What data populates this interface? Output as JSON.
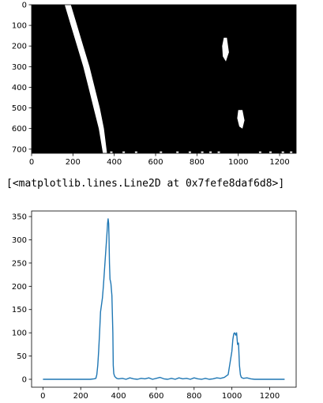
{
  "cell_output": {
    "repr": "[<matplotlib.lines.Line2D at 0x7fefe8daf6d8>]"
  },
  "chart_data": [
    {
      "type": "heatmap",
      "colors": {
        "background": "#000000",
        "foreground": "#ffffff"
      },
      "xlim": [
        0,
        1280
      ],
      "ylim": [
        720,
        0
      ],
      "x_ticks": [
        0,
        200,
        400,
        600,
        800,
        1000,
        1200
      ],
      "y_ticks": [
        0,
        100,
        200,
        300,
        400,
        500,
        600,
        700
      ],
      "regions": [
        {
          "points": [
            [
              160,
              0
            ],
            [
              190,
              0
            ],
            [
              220,
              100
            ],
            [
              250,
              200
            ],
            [
              280,
              300
            ],
            [
              305,
              400
            ],
            [
              330,
              500
            ],
            [
              350,
              600
            ],
            [
              365,
              720
            ],
            [
              345,
              720
            ],
            [
              325,
              600
            ],
            [
              300,
              500
            ],
            [
              275,
              400
            ],
            [
              250,
              300
            ],
            [
              220,
              200
            ],
            [
              190,
              100
            ]
          ]
        },
        {
          "points": [
            [
              930,
              160
            ],
            [
              945,
              160
            ],
            [
              955,
              230
            ],
            [
              940,
              275
            ],
            [
              925,
              250
            ],
            [
              922,
              200
            ]
          ]
        },
        {
          "points": [
            [
              1000,
              510
            ],
            [
              1020,
              510
            ],
            [
              1030,
              560
            ],
            [
              1020,
              600
            ],
            [
              1005,
              590
            ],
            [
              995,
              550
            ]
          ]
        }
      ],
      "specks": [
        [
          380,
          715
        ],
        [
          440,
          715
        ],
        [
          500,
          715
        ],
        [
          620,
          715
        ],
        [
          700,
          715
        ],
        [
          760,
          715
        ],
        [
          820,
          715
        ],
        [
          860,
          715
        ],
        [
          900,
          715
        ],
        [
          1100,
          715
        ],
        [
          1150,
          715
        ],
        [
          1210,
          715
        ],
        [
          1250,
          715
        ]
      ]
    },
    {
      "type": "line",
      "color": "#1f77b4",
      "xlim": [
        -60,
        1340
      ],
      "ylim": [
        -17,
        362
      ],
      "x_ticks": [
        0,
        200,
        400,
        600,
        800,
        1000,
        1200
      ],
      "y_ticks": [
        0,
        50,
        100,
        150,
        200,
        250,
        300,
        350
      ],
      "x": [
        0,
        100,
        200,
        250,
        270,
        280,
        285,
        290,
        295,
        300,
        305,
        310,
        315,
        320,
        325,
        330,
        335,
        340,
        342,
        345,
        348,
        350,
        352,
        355,
        358,
        360,
        365,
        370,
        372,
        375,
        380,
        385,
        390,
        400,
        420,
        440,
        460,
        480,
        500,
        520,
        540,
        560,
        580,
        600,
        620,
        640,
        660,
        680,
        700,
        720,
        740,
        760,
        780,
        800,
        820,
        840,
        860,
        880,
        900,
        920,
        940,
        960,
        980,
        1000,
        1005,
        1010,
        1015,
        1020,
        1025,
        1030,
        1035,
        1040,
        1045,
        1050,
        1060,
        1080,
        1100,
        1120,
        1140,
        1160,
        1180,
        1200,
        1220,
        1240,
        1260,
        1279
      ],
      "y": [
        0,
        0,
        0,
        0,
        1,
        2,
        10,
        30,
        60,
        100,
        145,
        160,
        175,
        200,
        230,
        260,
        290,
        320,
        335,
        345,
        335,
        300,
        250,
        215,
        210,
        205,
        180,
        100,
        30,
        12,
        6,
        4,
        2,
        1,
        2,
        0,
        3,
        1,
        0,
        2,
        1,
        3,
        0,
        2,
        4,
        1,
        0,
        2,
        0,
        3,
        1,
        2,
        0,
        3,
        1,
        0,
        2,
        0,
        1,
        3,
        2,
        4,
        10,
        60,
        85,
        98,
        100,
        95,
        100,
        75,
        78,
        30,
        10,
        4,
        2,
        3,
        1,
        0,
        0,
        0,
        0,
        0,
        0,
        0,
        0,
        0
      ]
    }
  ]
}
